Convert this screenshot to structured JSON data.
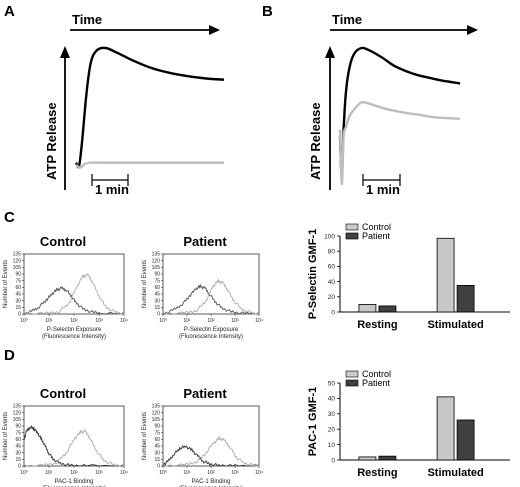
{
  "panel_letters": [
    "A",
    "B",
    "C",
    "D"
  ],
  "colors": {
    "control": "#c8c8c8",
    "patient": "#404040",
    "trace_dark": "#000000",
    "trace_light": "#bdbdbd"
  },
  "chart_data": [
    {
      "id": "A",
      "type": "line",
      "title": "",
      "time_label": "Time",
      "ylabel": "ATP Release",
      "scale_bar_label": "1 min",
      "ylim": [
        0,
        1
      ],
      "series": [
        {
          "color": "#000000",
          "x": [
            0,
            0.02,
            0.04,
            0.07,
            0.1,
            0.14,
            0.2,
            0.28,
            0.38,
            0.5,
            0.62,
            0.75,
            0.88,
            1.0
          ],
          "values": [
            0.06,
            0.03,
            0.22,
            0.62,
            0.88,
            0.98,
            1.0,
            0.96,
            0.9,
            0.84,
            0.8,
            0.77,
            0.75,
            0.74
          ]
        },
        {
          "color": "#bdbdbd",
          "x": [
            0,
            0.03,
            0.06,
            0.1,
            0.2,
            0.4,
            0.6,
            0.8,
            1.0
          ],
          "values": [
            0.04,
            0.02,
            0.05,
            0.06,
            0.06,
            0.06,
            0.06,
            0.06,
            0.06
          ]
        }
      ]
    },
    {
      "id": "B",
      "type": "line",
      "title": "",
      "time_label": "Time",
      "ylabel": "ATP Release",
      "scale_bar_label": "1 min",
      "ylim": [
        0,
        1
      ],
      "series": [
        {
          "color": "#000000",
          "x": [
            0,
            0.015,
            0.03,
            0.05,
            0.08,
            0.12,
            0.18,
            0.25,
            0.35,
            0.45,
            0.55,
            0.65,
            0.75,
            0.85,
            1.0
          ],
          "values": [
            0.35,
            0.05,
            0.4,
            0.68,
            0.86,
            0.96,
            1.0,
            0.98,
            0.93,
            0.87,
            0.83,
            0.8,
            0.78,
            0.76,
            0.74
          ]
        },
        {
          "color": "#bdbdbd",
          "x": [
            0,
            0.015,
            0.03,
            0.05,
            0.08,
            0.12,
            0.18,
            0.25,
            0.35,
            0.5,
            0.65,
            0.8,
            1.0
          ],
          "values": [
            0.4,
            0.0,
            0.35,
            0.42,
            0.5,
            0.55,
            0.6,
            0.59,
            0.56,
            0.53,
            0.51,
            0.49,
            0.48
          ]
        }
      ]
    },
    {
      "id": "C-control",
      "type": "line",
      "title": "Control",
      "xlabel": "P-Selectin Exposure",
      "xlabel2": "(Fluorescence Intensity)",
      "ylabel": "Number of Events",
      "y_ticks": [
        "0",
        "15",
        "30",
        "45",
        "60",
        "75",
        "90",
        "105",
        "120",
        "135"
      ],
      "x_ticks": [
        "10⁰",
        "10¹",
        "10²",
        "10³",
        "10⁴"
      ],
      "series": [
        {
          "color": "#555555",
          "x": [
            0,
            0.3,
            0.6,
            0.9,
            1.1,
            1.3,
            1.5,
            1.7,
            1.9,
            2.1,
            2.4,
            2.8,
            3.2,
            4.0
          ],
          "values": [
            0,
            6,
            16,
            32,
            44,
            54,
            58,
            54,
            40,
            24,
            10,
            3,
            1,
            0
          ]
        },
        {
          "color": "#aaaaaa",
          "x": [
            0,
            0.8,
            1.4,
            1.8,
            2.1,
            2.35,
            2.55,
            2.75,
            3.0,
            3.3,
            3.7,
            4.0
          ],
          "values": [
            0,
            1,
            6,
            24,
            60,
            84,
            88,
            72,
            40,
            14,
            3,
            0
          ]
        }
      ]
    },
    {
      "id": "C-patient",
      "type": "line",
      "title": "Patient",
      "xlabel": "P-Selectin Exposure",
      "xlabel2": "(Fluorescence Intensity)",
      "ylabel": "Number of Events",
      "y_ticks": [
        "0",
        "15",
        "30",
        "45",
        "60",
        "75",
        "90",
        "105",
        "120",
        "135"
      ],
      "x_ticks": [
        "10⁰",
        "10¹",
        "10²",
        "10³",
        "10⁴"
      ],
      "series": [
        {
          "color": "#555555",
          "x": [
            0,
            0.4,
            0.8,
            1.1,
            1.35,
            1.55,
            1.75,
            1.95,
            2.2,
            2.5,
            2.9,
            3.4,
            4.0
          ],
          "values": [
            0,
            8,
            22,
            40,
            56,
            62,
            58,
            44,
            26,
            12,
            4,
            1,
            0
          ]
        },
        {
          "color": "#aaaaaa",
          "x": [
            0,
            0.9,
            1.4,
            1.8,
            2.05,
            2.3,
            2.5,
            2.7,
            2.95,
            3.3,
            3.7,
            4.0
          ],
          "values": [
            0,
            2,
            8,
            30,
            60,
            74,
            70,
            54,
            30,
            10,
            2,
            0
          ]
        }
      ]
    },
    {
      "id": "D-control",
      "type": "line",
      "title": "Control",
      "xlabel": "PAC-1 Binding",
      "xlabel2": "(Fluorescence Intensity)",
      "ylabel": "Number of Events",
      "y_ticks": [
        "0",
        "15",
        "30",
        "45",
        "60",
        "75",
        "90",
        "105",
        "120",
        "135"
      ],
      "x_ticks": [
        "10⁰",
        "10¹",
        "10²",
        "10³",
        "10⁴"
      ],
      "series": [
        {
          "color": "#333333",
          "x": [
            0,
            0.1,
            0.25,
            0.4,
            0.55,
            0.7,
            0.85,
            1.0,
            1.2,
            1.5,
            1.9,
            2.5,
            4.0
          ],
          "values": [
            60,
            78,
            88,
            84,
            74,
            60,
            44,
            28,
            14,
            5,
            1,
            0,
            0
          ]
        },
        {
          "color": "#aaaaaa",
          "x": [
            0,
            0.8,
            1.3,
            1.7,
            2.0,
            2.25,
            2.45,
            2.65,
            2.9,
            3.2,
            3.6,
            4.0
          ],
          "values": [
            0,
            1,
            8,
            30,
            60,
            76,
            78,
            62,
            34,
            12,
            2,
            0
          ]
        }
      ]
    },
    {
      "id": "D-patient",
      "type": "line",
      "title": "Patient",
      "xlabel": "PAC-1 Binding",
      "xlabel2": "(Fluorescence Intensity)",
      "ylabel": "Number of Events",
      "y_ticks": [
        "0",
        "15",
        "30",
        "45",
        "60",
        "75",
        "90",
        "105",
        "120",
        "135"
      ],
      "x_ticks": [
        "10⁰",
        "10¹",
        "10²",
        "10³",
        "10⁴"
      ],
      "series": [
        {
          "color": "#333333",
          "x": [
            0,
            0.2,
            0.45,
            0.7,
            0.95,
            1.2,
            1.45,
            1.7,
            2.0,
            2.4,
            3.0,
            4.0
          ],
          "values": [
            2,
            10,
            26,
            40,
            44,
            36,
            22,
            10,
            4,
            1,
            0,
            0
          ]
        },
        {
          "color": "#aaaaaa",
          "x": [
            0,
            0.9,
            1.4,
            1.8,
            2.1,
            2.35,
            2.55,
            2.8,
            3.05,
            3.4,
            3.8,
            4.0
          ],
          "values": [
            0,
            2,
            10,
            30,
            52,
            62,
            58,
            42,
            20,
            6,
            1,
            0
          ]
        }
      ]
    },
    {
      "id": "C-bar",
      "type": "bar",
      "title": "",
      "ylabel": "P-Selectin GMF-1",
      "categories": [
        "Resting",
        "Stimulated"
      ],
      "ylim": [
        0,
        100
      ],
      "y_ticks": [
        "0",
        "20",
        "40",
        "60",
        "80",
        "100"
      ],
      "legend": [
        "Control",
        "Patient"
      ],
      "legend_position": "top-left",
      "series": [
        {
          "name": "Control",
          "values": [
            10,
            97
          ]
        },
        {
          "name": "Patient",
          "values": [
            8,
            35
          ]
        }
      ]
    },
    {
      "id": "D-bar",
      "type": "bar",
      "title": "",
      "ylabel": "PAC-1 GMF-1",
      "categories": [
        "Resting",
        "Stimulated"
      ],
      "ylim": [
        0,
        50
      ],
      "y_ticks": [
        "0",
        "10",
        "20",
        "30",
        "40",
        "50"
      ],
      "legend": [
        "Control",
        "Patient"
      ],
      "legend_position": "top-left",
      "series": [
        {
          "name": "Control",
          "values": [
            2,
            41
          ]
        },
        {
          "name": "Patient",
          "values": [
            2.5,
            26
          ]
        }
      ]
    }
  ]
}
